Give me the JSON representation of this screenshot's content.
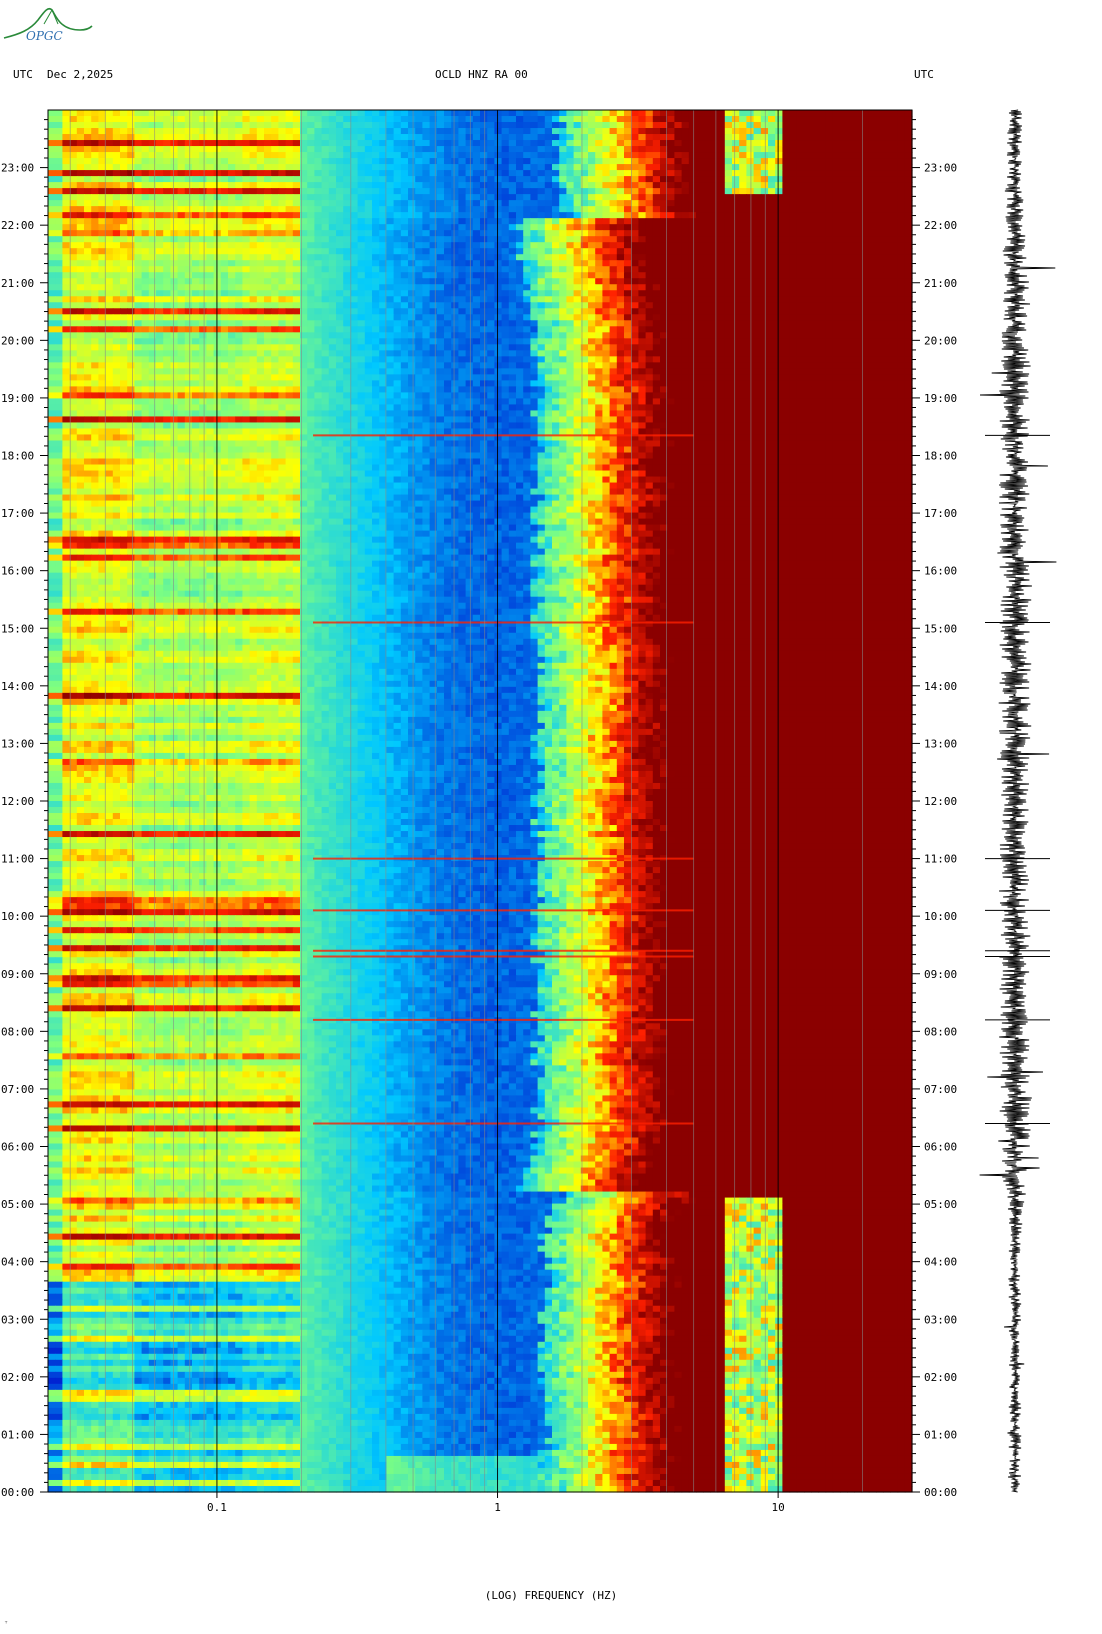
{
  "header": {
    "left_tz": "UTC",
    "date": "Dec 2,2025",
    "station": "OCLD HNZ RA 00",
    "right_tz": "UTC"
  },
  "logo": {
    "text": "OPGC",
    "icon": "mountain-logo-icon"
  },
  "colors": {
    "cold": "#0000c8",
    "cyan": "#00c8ff",
    "green": "#7fff7f",
    "yellow": "#ffff00",
    "red": "#ff2000",
    "darkred": "#8b0000",
    "trace": "#000000"
  },
  "chart_data": {
    "type": "heatmap",
    "title": "OCLD HNZ RA 00",
    "xlabel": "(LOG) FREQUENCY (HZ)",
    "x_scale": "log",
    "xlim": [
      0.025,
      30
    ],
    "x_ticks": [
      {
        "value": 0.1,
        "label": "0.1"
      },
      {
        "value": 1,
        "label": "1"
      },
      {
        "value": 10,
        "label": "10"
      }
    ],
    "ylim_hours": [
      0,
      24
    ],
    "y_ticks": [
      "00:00",
      "01:00",
      "02:00",
      "03:00",
      "04:00",
      "05:00",
      "06:00",
      "07:00",
      "08:00",
      "09:00",
      "10:00",
      "11:00",
      "12:00",
      "13:00",
      "14:00",
      "15:00",
      "16:00",
      "17:00",
      "18:00",
      "19:00",
      "20:00",
      "21:00",
      "22:00",
      "23:00"
    ],
    "colormap": [
      "#0000c8",
      "#00c8ff",
      "#7fff7f",
      "#ffff00",
      "#ff2000",
      "#8b0000"
    ],
    "events_utc_hours": [
      9.3,
      8.2,
      15.1,
      11.0,
      10.1,
      18.35,
      6.4,
      9.4
    ],
    "grid": "vertical log-frequency lines",
    "side_panel": "seismogram trace"
  },
  "footer": {
    "mark": "ᵀ"
  }
}
